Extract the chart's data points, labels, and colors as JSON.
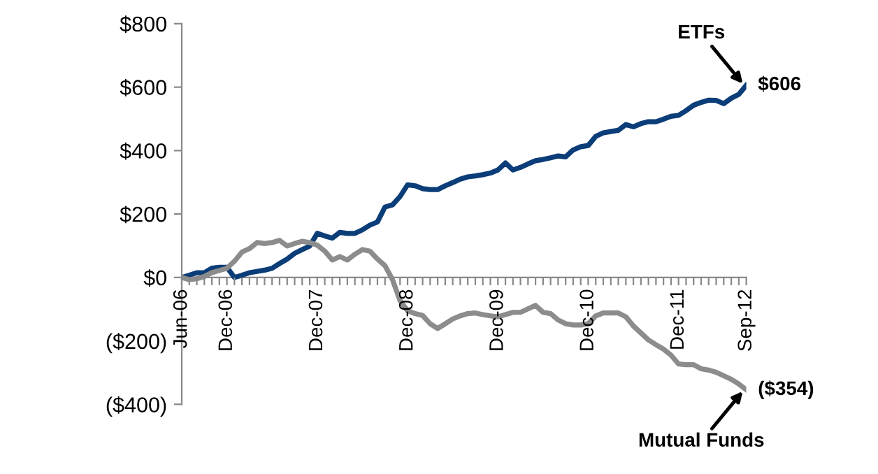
{
  "chart_data": {
    "type": "line",
    "categories": [
      "Jun-06",
      null,
      null,
      null,
      null,
      null,
      "Dec-06",
      null,
      null,
      null,
      null,
      null,
      null,
      null,
      null,
      null,
      null,
      null,
      "Dec-07",
      null,
      null,
      null,
      null,
      null,
      null,
      null,
      null,
      null,
      null,
      null,
      "Dec-08",
      null,
      null,
      null,
      null,
      null,
      null,
      null,
      null,
      null,
      null,
      null,
      "Dec-09",
      null,
      null,
      null,
      null,
      null,
      null,
      null,
      null,
      null,
      null,
      null,
      "Dec-10",
      null,
      null,
      null,
      null,
      null,
      null,
      null,
      null,
      null,
      null,
      null,
      "Dec-11",
      null,
      null,
      null,
      null,
      null,
      null,
      null,
      null,
      "Sep-12"
    ],
    "series": [
      {
        "name": "ETFs",
        "color": "#0b3d78",
        "values": [
          0,
          7,
          15,
          15,
          29,
          32,
          32,
          0,
          7,
          15,
          19,
          23,
          29,
          44,
          58,
          76,
          88,
          99,
          139,
          131,
          124,
          142,
          139,
          139,
          150,
          165,
          175,
          222,
          229,
          255,
          292,
          289,
          280,
          277,
          277,
          289,
          299,
          310,
          317,
          320,
          324,
          329,
          339,
          361,
          339,
          347,
          358,
          368,
          372,
          377,
          383,
          380,
          402,
          412,
          416,
          445,
          456,
          460,
          464,
          482,
          475,
          485,
          491,
          491,
          499,
          508,
          511,
          526,
          543,
          552,
          559,
          558,
          548,
          565,
          577,
          606
        ],
        "value_labels": [
          null,
          null,
          null,
          null,
          null,
          null,
          null,
          null,
          null,
          null,
          null,
          null,
          null,
          null,
          null,
          null,
          null,
          null,
          null,
          null,
          null,
          null,
          null,
          null,
          null,
          null,
          null,
          null,
          null,
          null,
          null,
          null,
          null,
          null,
          null,
          null,
          null,
          null,
          null,
          null,
          null,
          null,
          null,
          null,
          null,
          null,
          null,
          null,
          null,
          null,
          null,
          null,
          null,
          null,
          null,
          null,
          null,
          null,
          null,
          null,
          null,
          null,
          null,
          null,
          null,
          null,
          null,
          null,
          null,
          null,
          null,
          null,
          null,
          null,
          null,
          "$606"
        ]
      },
      {
        "name": "Mutual Funds",
        "color": "#8c8c8c",
        "values": [
          0,
          -7,
          -4,
          3,
          15,
          22,
          29,
          51,
          80,
          91,
          110,
          107,
          110,
          117,
          99,
          107,
          114,
          110,
          102,
          83,
          55,
          66,
          55,
          73,
          88,
          83,
          58,
          37,
          -7,
          -73,
          -105,
          -114,
          -120,
          -146,
          -161,
          -146,
          -131,
          -121,
          -114,
          -112,
          -117,
          -121,
          -124,
          -117,
          -110,
          -110,
          -99,
          -88,
          -110,
          -114,
          -134,
          -146,
          -150,
          -150,
          -146,
          -121,
          -112,
          -112,
          -112,
          -124,
          -153,
          -175,
          -197,
          -212,
          -226,
          -245,
          -273,
          -275,
          -275,
          -288,
          -292,
          -299,
          -310,
          -321,
          -336,
          -354
        ],
        "value_labels": [
          null,
          null,
          null,
          null,
          null,
          null,
          null,
          null,
          null,
          null,
          null,
          null,
          null,
          null,
          null,
          null,
          null,
          null,
          null,
          null,
          null,
          null,
          null,
          null,
          null,
          null,
          null,
          null,
          null,
          null,
          null,
          null,
          null,
          null,
          null,
          null,
          null,
          null,
          null,
          null,
          null,
          null,
          null,
          null,
          null,
          null,
          null,
          null,
          null,
          null,
          null,
          null,
          null,
          null,
          null,
          null,
          null,
          null,
          null,
          null,
          null,
          null,
          null,
          null,
          null,
          null,
          null,
          null,
          null,
          null,
          null,
          null,
          null,
          null,
          null,
          "($354)"
        ]
      }
    ],
    "ylim": [
      -400,
      800
    ],
    "yticks": [
      {
        "value": -400,
        "label": "($400)"
      },
      {
        "value": -200,
        "label": "($200)"
      },
      {
        "value": 0,
        "label": "$0"
      },
      {
        "value": 200,
        "label": "$200"
      },
      {
        "value": 400,
        "label": "$400"
      },
      {
        "value": 600,
        "label": "$600"
      },
      {
        "value": 800,
        "label": "$800"
      }
    ],
    "grid": false,
    "legend": false,
    "marker": "none",
    "line_style": "solid"
  }
}
